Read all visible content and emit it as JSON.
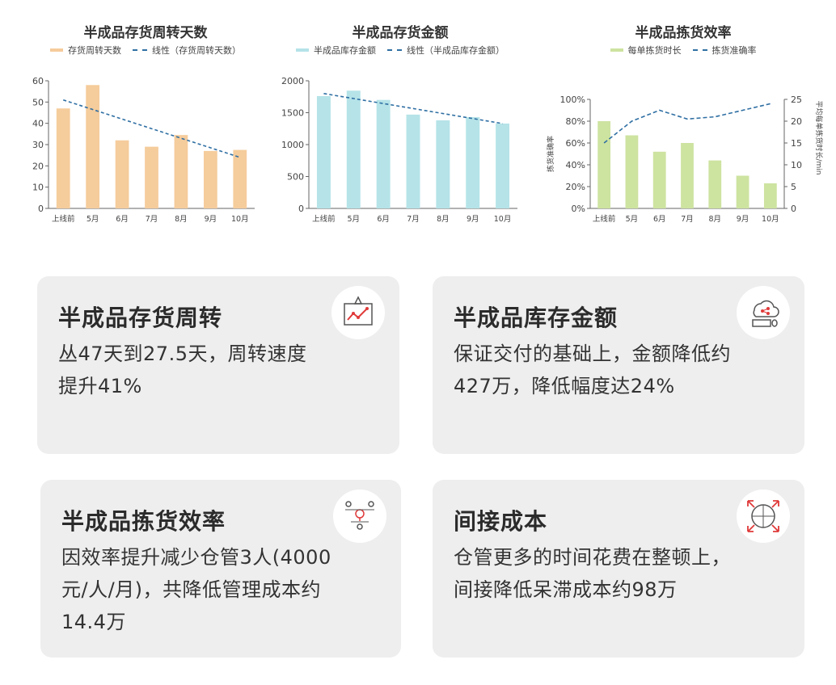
{
  "charts": [
    {
      "type": "bar",
      "title": "半成品存货周转天数",
      "legend": [
        "存货周转天数",
        "线性（存货周转天数）"
      ],
      "categories": [
        "上线前",
        "5月",
        "6月",
        "7月",
        "8月",
        "9月",
        "10月"
      ],
      "values": [
        47,
        58,
        32,
        29,
        34.5,
        27,
        27.5
      ],
      "trend": [
        51,
        24
      ],
      "ylim": [
        0,
        60
      ],
      "yticks": [
        "0",
        "10",
        "20",
        "30",
        "40",
        "50",
        "60"
      ],
      "color": "#f5cc9c"
    },
    {
      "type": "bar",
      "title": "半成品存货金额",
      "legend": [
        "半成品库存金额",
        "线性（半成品库存金额）"
      ],
      "categories": [
        "上线前",
        "5月",
        "6月",
        "7月",
        "8月",
        "9月",
        "10月"
      ],
      "values": [
        1760,
        1845,
        1700,
        1470,
        1380,
        1430,
        1330
      ],
      "trend": [
        1800,
        1330
      ],
      "ylim": [
        0,
        2000
      ],
      "yticks": [
        "0",
        "500",
        "1000",
        "1500",
        "2000"
      ],
      "color": "#b5e3e8"
    },
    {
      "type": "bar",
      "title": "半成品拣货效率",
      "legend": [
        "每单拣货时长",
        "拣货准确率"
      ],
      "categories": [
        "上线前",
        "5月",
        "6月",
        "7月",
        "8月",
        "9月",
        "10月"
      ],
      "values": [
        80,
        67,
        52,
        60,
        44,
        30,
        23
      ],
      "line_values": [
        15,
        20,
        22.5,
        20.5,
        21,
        22.5,
        24
      ],
      "ylim": [
        0,
        100
      ],
      "yticks": [
        "0%",
        "20%",
        "40%",
        "60%",
        "80%",
        "100%"
      ],
      "y2lim": [
        0,
        25
      ],
      "y2ticks": [
        "0",
        "5",
        "10",
        "15",
        "20",
        "25"
      ],
      "ylabel": "拣货准确率",
      "y2label": "平均每单拣货时长/min",
      "color": "#cde3a0"
    }
  ],
  "chart_data": [
    {
      "type": "bar",
      "title": "半成品存货周转天数",
      "categories": [
        "上线前",
        "5月",
        "6月",
        "7月",
        "8月",
        "9月",
        "10月"
      ],
      "series": [
        {
          "name": "存货周转天数",
          "values": [
            47,
            58,
            32,
            29,
            34.5,
            27,
            27.5
          ]
        }
      ],
      "trendline": {
        "name": "线性（存货周转天数）"
      },
      "ylim": [
        0,
        60
      ]
    },
    {
      "type": "bar",
      "title": "半成品存货金额",
      "categories": [
        "上线前",
        "5月",
        "6月",
        "7月",
        "8月",
        "9月",
        "10月"
      ],
      "series": [
        {
          "name": "半成品库存金额",
          "values": [
            1760,
            1845,
            1700,
            1470,
            1380,
            1430,
            1330
          ]
        }
      ],
      "trendline": {
        "name": "线性（半成品库存金额）"
      },
      "ylim": [
        0,
        2000
      ]
    },
    {
      "type": "bar",
      "title": "半成品拣货效率",
      "categories": [
        "上线前",
        "5月",
        "6月",
        "7月",
        "8月",
        "9月",
        "10月"
      ],
      "series": [
        {
          "name": "每单拣货时长",
          "values": [
            80,
            67,
            52,
            60,
            44,
            30,
            23
          ]
        },
        {
          "name": "拣货准确率",
          "values": [
            15,
            20,
            22.5,
            20.5,
            21,
            22.5,
            24
          ]
        }
      ],
      "ylim": [
        0,
        100
      ],
      "y2lim": [
        0,
        25
      ]
    }
  ],
  "cards": [
    {
      "title": "半成品存货周转",
      "lines": [
        "丛47天到27.5天，周转速度",
        "提升41%"
      ],
      "icon": "rocket-growth-icon"
    },
    {
      "title": "半成品库存金额",
      "lines": [
        "保证交付的基础上，金额降低约",
        "427万，降低幅度达24%"
      ],
      "icon": "cloud-computer-icon"
    },
    {
      "title": "半成品拣货效率",
      "lines": [
        "因效率提升减少仓管3人(4000",
        "元/人/月)，共降低管理成本约",
        "14.4万"
      ],
      "icon": "team-idea-icon"
    },
    {
      "title": "间接成本",
      "lines": [
        "仓管更多的时间花费在整顿上，",
        "间接降低呆滞成本约98万"
      ],
      "icon": "network-arrows-icon"
    }
  ]
}
